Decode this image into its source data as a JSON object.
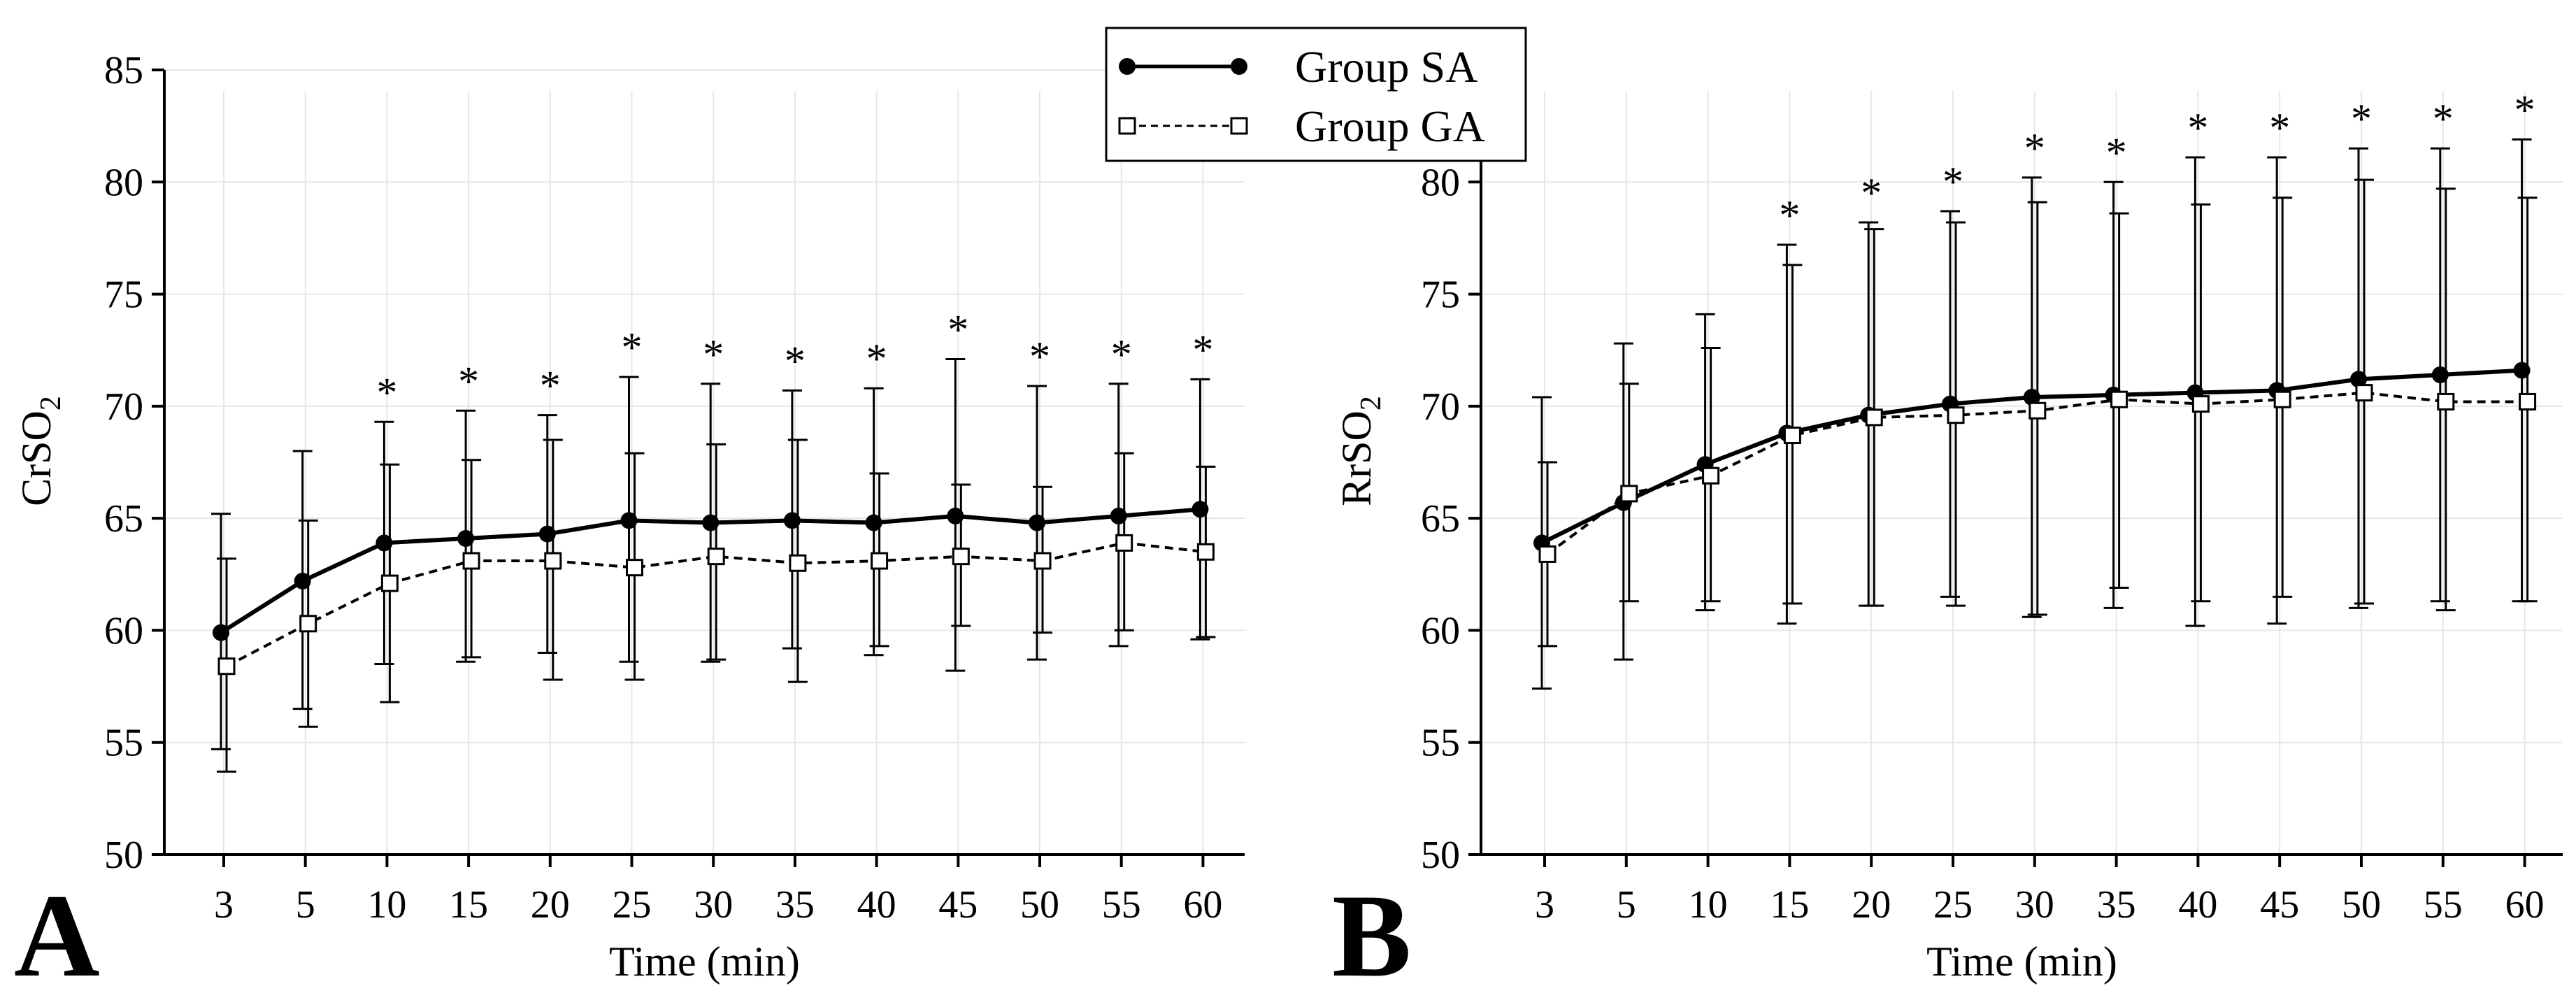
{
  "figure": {
    "legend": {
      "items": [
        {
          "label": "Group SA",
          "marker": "filled-circle",
          "line": "solid"
        },
        {
          "label": "Group GA",
          "marker": "open-square",
          "line": "dashed"
        }
      ],
      "placement": "top-center"
    }
  },
  "chart_data": [
    {
      "type": "line",
      "panel_label": "A",
      "xlabel": "Time (min)",
      "ylabel": "CrSO",
      "ylabel_sub": "2",
      "ylim": [
        50,
        85
      ],
      "yticks": [
        50,
        55,
        60,
        65,
        70,
        75,
        80,
        85
      ],
      "grid": true,
      "categories": [
        "3",
        "5",
        "10",
        "15",
        "20",
        "25",
        "30",
        "35",
        "40",
        "45",
        "50",
        "55",
        "60"
      ],
      "significance_marker": "*",
      "significant": [
        false,
        false,
        true,
        true,
        true,
        true,
        true,
        true,
        true,
        true,
        true,
        true,
        true
      ],
      "series": [
        {
          "name": "Group SA",
          "values": [
            59.9,
            62.2,
            63.9,
            64.1,
            64.3,
            64.9,
            64.8,
            64.9,
            64.8,
            65.1,
            64.8,
            65.1,
            65.4
          ],
          "error_upper": [
            65.2,
            68.0,
            69.3,
            69.8,
            69.6,
            71.3,
            71.0,
            70.7,
            70.8,
            72.1,
            70.9,
            71.0,
            71.2
          ],
          "error_lower": [
            54.7,
            56.5,
            58.5,
            58.6,
            59.0,
            58.6,
            58.6,
            59.2,
            58.9,
            58.2,
            58.7,
            59.3,
            59.6
          ]
        },
        {
          "name": "Group GA",
          "values": [
            58.4,
            60.3,
            62.1,
            63.1,
            63.1,
            62.8,
            63.3,
            63.0,
            63.1,
            63.3,
            63.1,
            63.9,
            63.5
          ],
          "error_upper": [
            63.2,
            64.9,
            67.4,
            67.6,
            68.5,
            67.9,
            68.3,
            68.5,
            67.0,
            66.5,
            66.4,
            67.9,
            67.3
          ],
          "error_lower": [
            53.7,
            55.7,
            56.8,
            58.8,
            57.8,
            57.8,
            58.7,
            57.7,
            59.3,
            60.2,
            59.9,
            60.0,
            59.7
          ]
        }
      ]
    },
    {
      "type": "line",
      "panel_label": "B",
      "xlabel": "Time (min)",
      "ylabel": "RrSO",
      "ylabel_sub": "2",
      "ylim": [
        50,
        85
      ],
      "yticks": [
        50,
        55,
        60,
        65,
        70,
        75,
        80
      ],
      "grid": true,
      "categories": [
        "3",
        "5",
        "10",
        "15",
        "20",
        "25",
        "30",
        "35",
        "40",
        "45",
        "50",
        "55",
        "60"
      ],
      "significance_marker": "*",
      "significant": [
        false,
        false,
        false,
        true,
        true,
        true,
        true,
        true,
        true,
        true,
        true,
        true,
        true
      ],
      "series": [
        {
          "name": "Group SA",
          "values": [
            63.9,
            65.7,
            67.4,
            68.8,
            69.6,
            70.1,
            70.4,
            70.5,
            70.6,
            70.7,
            71.2,
            71.4,
            71.6
          ],
          "error_upper": [
            70.4,
            72.8,
            74.1,
            77.2,
            78.2,
            78.7,
            80.2,
            80.0,
            81.1,
            81.1,
            81.5,
            81.5,
            81.9
          ],
          "error_lower": [
            57.4,
            58.7,
            60.9,
            60.3,
            61.1,
            61.5,
            60.6,
            61.0,
            60.2,
            60.3,
            61.0,
            61.3,
            61.3
          ]
        },
        {
          "name": "Group GA",
          "values": [
            63.4,
            66.1,
            66.9,
            68.7,
            69.5,
            69.6,
            69.8,
            70.3,
            70.1,
            70.3,
            70.6,
            70.2,
            70.2
          ],
          "error_upper": [
            67.5,
            71.0,
            72.6,
            76.3,
            77.9,
            78.2,
            79.1,
            78.6,
            79.0,
            79.3,
            80.1,
            79.7,
            79.3
          ],
          "error_lower": [
            59.3,
            61.3,
            61.3,
            61.2,
            61.1,
            61.1,
            60.7,
            61.9,
            61.3,
            61.5,
            61.2,
            60.9,
            61.3
          ]
        }
      ]
    }
  ]
}
